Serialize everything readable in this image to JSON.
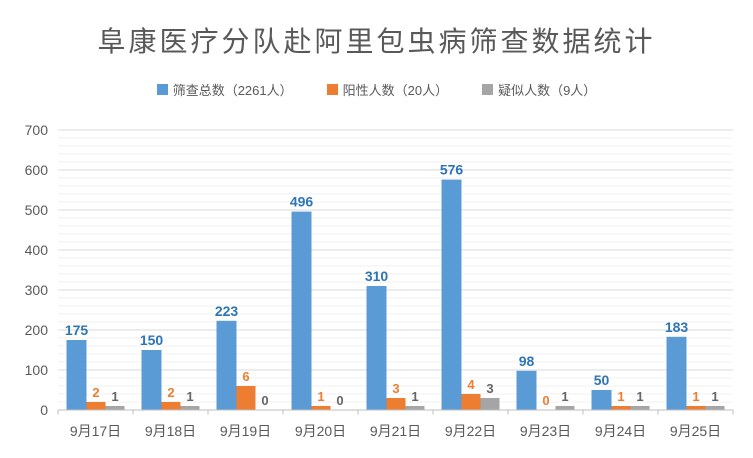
{
  "chart_data": {
    "type": "bar",
    "title": "阜康医疗分队赴阿里包虫病筛查数据统计",
    "categories": [
      "9月17日",
      "9月18日",
      "9月19日",
      "9月20日",
      "9月21日",
      "9月22日",
      "9月23日",
      "9月24日",
      "9月25日"
    ],
    "series": [
      {
        "name": "筛查总数（2261人）",
        "color": "#5B9BD5",
        "label_color": "#2E75B6",
        "axis": "primary",
        "values": [
          175,
          150,
          223,
          496,
          310,
          576,
          98,
          50,
          183
        ]
      },
      {
        "name": "阳性人数（20人）",
        "color": "#ED7D31",
        "label_color": "#ED7D31",
        "axis": "secondary",
        "values": [
          2,
          2,
          6,
          1,
          3,
          4,
          0,
          1,
          1
        ]
      },
      {
        "name": "疑似人数（9人）",
        "color": "#A5A5A5",
        "label_color": "#666666",
        "axis": "secondary",
        "values": [
          1,
          1,
          0,
          0,
          1,
          3,
          1,
          1,
          1
        ]
      }
    ],
    "y_axis": {
      "min": 0,
      "max": 700,
      "major_unit": 100,
      "minor_unit": 20,
      "tick_labels": [
        "0",
        "100",
        "200",
        "300",
        "400",
        "500",
        "600",
        "700"
      ]
    },
    "secondary_y_axis": {
      "min": 0,
      "max": 70,
      "visible": false
    },
    "grid": {
      "major": true,
      "minor": true
    },
    "legend_position": "top",
    "data_labels": true
  },
  "style": {
    "axis_text_color": "#595959",
    "title_color": "#595959",
    "major_grid_color": "#D9D9D9",
    "minor_grid_color": "#F2F2F2",
    "axis_line_color": "#BFBFBF",
    "background": "#FFFFFF"
  }
}
